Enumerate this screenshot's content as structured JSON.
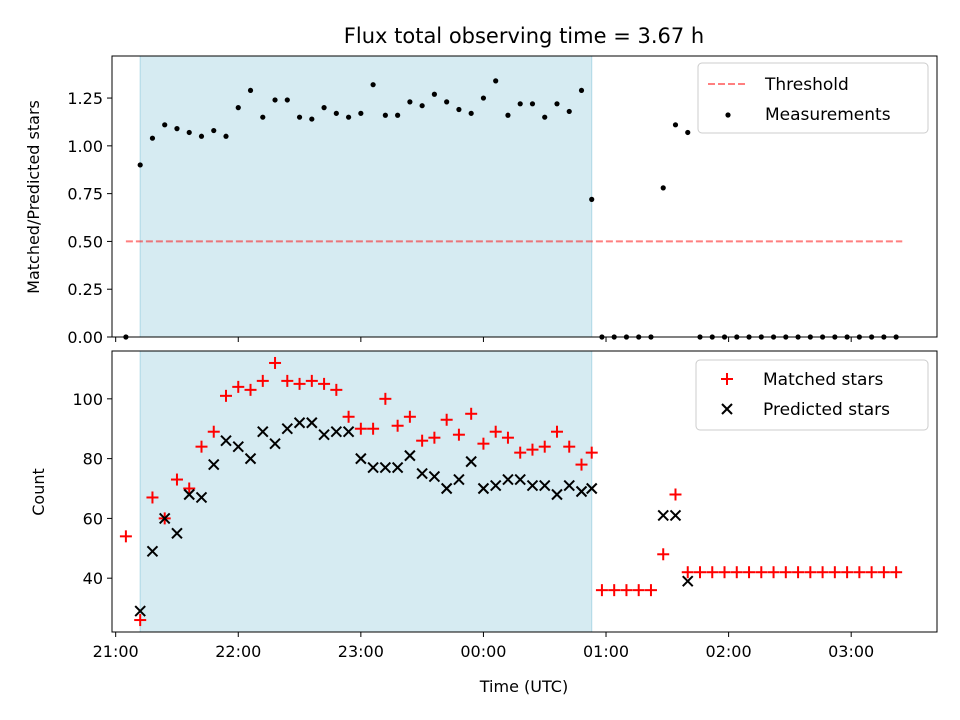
{
  "title": "Flux total observing time = 3.67 h",
  "colors": {
    "shade": "#add8e6",
    "threshold": "#ff0000",
    "measurement": "#000000",
    "matched": "#ff0000",
    "predicted": "#000000"
  },
  "chart_data": [
    {
      "type": "scatter",
      "ylabel": "Matched/Predicted stars",
      "ylim": [
        0,
        1.47
      ],
      "yticks": [
        0.0,
        0.25,
        0.5,
        0.75,
        1.0,
        1.25
      ],
      "yticklabels": [
        "0.00",
        "0.25",
        "0.50",
        "0.75",
        "1.00",
        "1.25"
      ],
      "xlim_hours": [
        20.97,
        27.7
      ],
      "observing_window": [
        "21:12",
        "00:53"
      ],
      "threshold": {
        "name": "Threshold",
        "value": 0.5,
        "x_range": [
          "21:05",
          "03:25"
        ]
      },
      "legend": {
        "position": "top-right",
        "entries": [
          "Threshold",
          "Measurements"
        ]
      },
      "series": [
        {
          "name": "Measurements",
          "x": [
            "21:05",
            "21:12",
            "21:18",
            "21:24",
            "21:30",
            "21:36",
            "21:42",
            "21:48",
            "21:54",
            "22:00",
            "22:06",
            "22:12",
            "22:18",
            "22:24",
            "22:30",
            "22:36",
            "22:42",
            "22:48",
            "22:54",
            "23:00",
            "23:06",
            "23:12",
            "23:18",
            "23:24",
            "23:30",
            "23:36",
            "23:42",
            "23:48",
            "23:54",
            "00:00",
            "00:06",
            "00:12",
            "00:18",
            "00:24",
            "00:30",
            "00:36",
            "00:42",
            "00:48",
            "00:53",
            "00:58",
            "01:04",
            "01:10",
            "01:16",
            "01:22",
            "01:28",
            "01:34",
            "01:40",
            "01:46",
            "01:52",
            "01:58",
            "02:04",
            "02:10",
            "02:16",
            "02:22",
            "02:28",
            "02:34",
            "02:40",
            "02:46",
            "02:52",
            "02:58",
            "03:04",
            "03:10",
            "03:16",
            "03:22"
          ],
          "y": [
            0.0,
            0.9,
            1.04,
            1.11,
            1.09,
            1.07,
            1.05,
            1.08,
            1.05,
            1.2,
            1.29,
            1.15,
            1.24,
            1.24,
            1.15,
            1.14,
            1.2,
            1.17,
            1.15,
            1.17,
            1.32,
            1.16,
            1.16,
            1.23,
            1.21,
            1.27,
            1.23,
            1.19,
            1.17,
            1.25,
            1.34,
            1.16,
            1.22,
            1.22,
            1.15,
            1.22,
            1.18,
            1.29,
            0.72,
            0.0,
            0.0,
            0.0,
            0.0,
            0.0,
            0.78,
            1.11,
            1.07,
            0.0,
            0.0,
            0.0,
            0.0,
            0.0,
            0.0,
            0.0,
            0.0,
            0.0,
            0.0,
            0.0,
            0.0,
            0.0,
            0.0,
            0.0,
            0.0,
            0.0
          ]
        }
      ]
    },
    {
      "type": "scatter",
      "xlabel": "Time (UTC)",
      "ylabel": "Count",
      "ylim": [
        22,
        116
      ],
      "yticks": [
        40,
        60,
        80,
        100
      ],
      "yticklabels": [
        "40",
        "60",
        "80",
        "100"
      ],
      "xticks": [
        "21:00",
        "22:00",
        "23:00",
        "00:00",
        "01:00",
        "02:00",
        "03:00"
      ],
      "xlim_hours": [
        20.97,
        27.7
      ],
      "observing_window": [
        "21:12",
        "00:53"
      ],
      "legend": {
        "position": "top-right",
        "entries": [
          "Matched stars",
          "Predicted stars"
        ]
      },
      "series": [
        {
          "name": "Matched stars",
          "x": [
            "21:05",
            "21:12",
            "21:18",
            "21:24",
            "21:30",
            "21:36",
            "21:42",
            "21:48",
            "21:54",
            "22:00",
            "22:06",
            "22:12",
            "22:18",
            "22:24",
            "22:30",
            "22:36",
            "22:42",
            "22:48",
            "22:54",
            "23:00",
            "23:06",
            "23:12",
            "23:18",
            "23:24",
            "23:30",
            "23:36",
            "23:42",
            "23:48",
            "23:54",
            "00:00",
            "00:06",
            "00:12",
            "00:18",
            "00:24",
            "00:30",
            "00:36",
            "00:42",
            "00:48",
            "00:53",
            "00:58",
            "01:04",
            "01:10",
            "01:16",
            "01:22",
            "01:28",
            "01:34",
            "01:40",
            "01:46",
            "01:52",
            "01:58",
            "02:04",
            "02:10",
            "02:16",
            "02:22",
            "02:28",
            "02:34",
            "02:40",
            "02:46",
            "02:52",
            "02:58",
            "03:04",
            "03:10",
            "03:16",
            "03:22"
          ],
          "y": [
            54,
            26,
            67,
            60,
            73,
            70,
            84,
            89,
            101,
            104,
            103,
            106,
            112,
            106,
            105,
            106,
            105,
            103,
            94,
            90,
            90,
            100,
            91,
            94,
            86,
            87,
            93,
            88,
            95,
            85,
            89,
            87,
            82,
            83,
            84,
            89,
            84,
            78,
            82,
            36,
            36,
            36,
            36,
            36,
            48,
            68,
            42,
            42,
            42,
            42,
            42,
            42,
            42,
            42,
            42,
            42,
            42,
            42,
            42,
            42,
            42,
            42,
            42,
            42
          ]
        },
        {
          "name": "Predicted stars",
          "x": [
            "21:12",
            "21:18",
            "21:24",
            "21:30",
            "21:36",
            "21:42",
            "21:48",
            "21:54",
            "22:00",
            "22:06",
            "22:12",
            "22:18",
            "22:24",
            "22:30",
            "22:36",
            "22:42",
            "22:48",
            "22:54",
            "23:00",
            "23:06",
            "23:12",
            "23:18",
            "23:24",
            "23:30",
            "23:36",
            "23:42",
            "23:48",
            "23:54",
            "00:00",
            "00:06",
            "00:12",
            "00:18",
            "00:24",
            "00:30",
            "00:36",
            "00:42",
            "00:48",
            "00:53",
            "01:28",
            "01:34",
            "01:40"
          ],
          "y": [
            29,
            49,
            60,
            55,
            68,
            67,
            78,
            86,
            84,
            80,
            89,
            85,
            90,
            92,
            92,
            88,
            89,
            89,
            80,
            77,
            77,
            77,
            81,
            75,
            74,
            70,
            73,
            79,
            70,
            71,
            73,
            73,
            71,
            71,
            68,
            71,
            69,
            70,
            61,
            61,
            39
          ]
        }
      ]
    }
  ]
}
